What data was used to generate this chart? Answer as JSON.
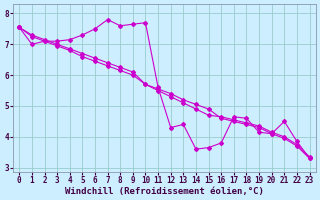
{
  "xlabel": "Windchill (Refroidissement éolien,°C)",
  "bg_color": "#cceeff",
  "grid_color": "#99cccc",
  "line_color": "#cc00cc",
  "x": [
    0,
    1,
    2,
    3,
    4,
    5,
    6,
    7,
    8,
    9,
    10,
    11,
    12,
    13,
    14,
    15,
    16,
    17,
    18,
    19,
    20,
    21,
    22,
    23
  ],
  "y_zigzag": [
    7.55,
    7.0,
    7.1,
    7.1,
    7.15,
    7.3,
    7.5,
    7.8,
    7.6,
    7.65,
    7.7,
    5.6,
    4.3,
    4.4,
    3.6,
    3.65,
    3.8,
    4.65,
    4.6,
    4.15,
    4.1,
    4.5,
    3.85,
    3.3
  ],
  "y_line1": [
    7.55,
    7.25,
    7.1,
    6.95,
    6.8,
    6.6,
    6.45,
    6.3,
    6.15,
    6.0,
    5.7,
    5.55,
    5.4,
    5.2,
    5.05,
    4.9,
    4.6,
    4.5,
    4.4,
    4.3,
    4.1,
    3.95,
    3.7,
    3.3
  ],
  "y_line2": [
    7.55,
    7.3,
    7.15,
    7.0,
    6.85,
    6.7,
    6.55,
    6.4,
    6.25,
    6.1,
    5.7,
    5.5,
    5.3,
    5.1,
    4.9,
    4.7,
    4.65,
    4.55,
    4.45,
    4.35,
    4.15,
    4.0,
    3.75,
    3.35
  ],
  "ylim": [
    2.85,
    8.3
  ],
  "xlim": [
    -0.5,
    23.5
  ],
  "yticks": [
    3,
    4,
    5,
    6,
    7,
    8
  ],
  "xticks": [
    0,
    1,
    2,
    3,
    4,
    5,
    6,
    7,
    8,
    9,
    10,
    11,
    12,
    13,
    14,
    15,
    16,
    17,
    18,
    19,
    20,
    21,
    22,
    23
  ],
  "tick_fontsize": 5.5,
  "xlabel_fontsize": 6.5,
  "markersize": 2.0,
  "linewidth": 0.8
}
